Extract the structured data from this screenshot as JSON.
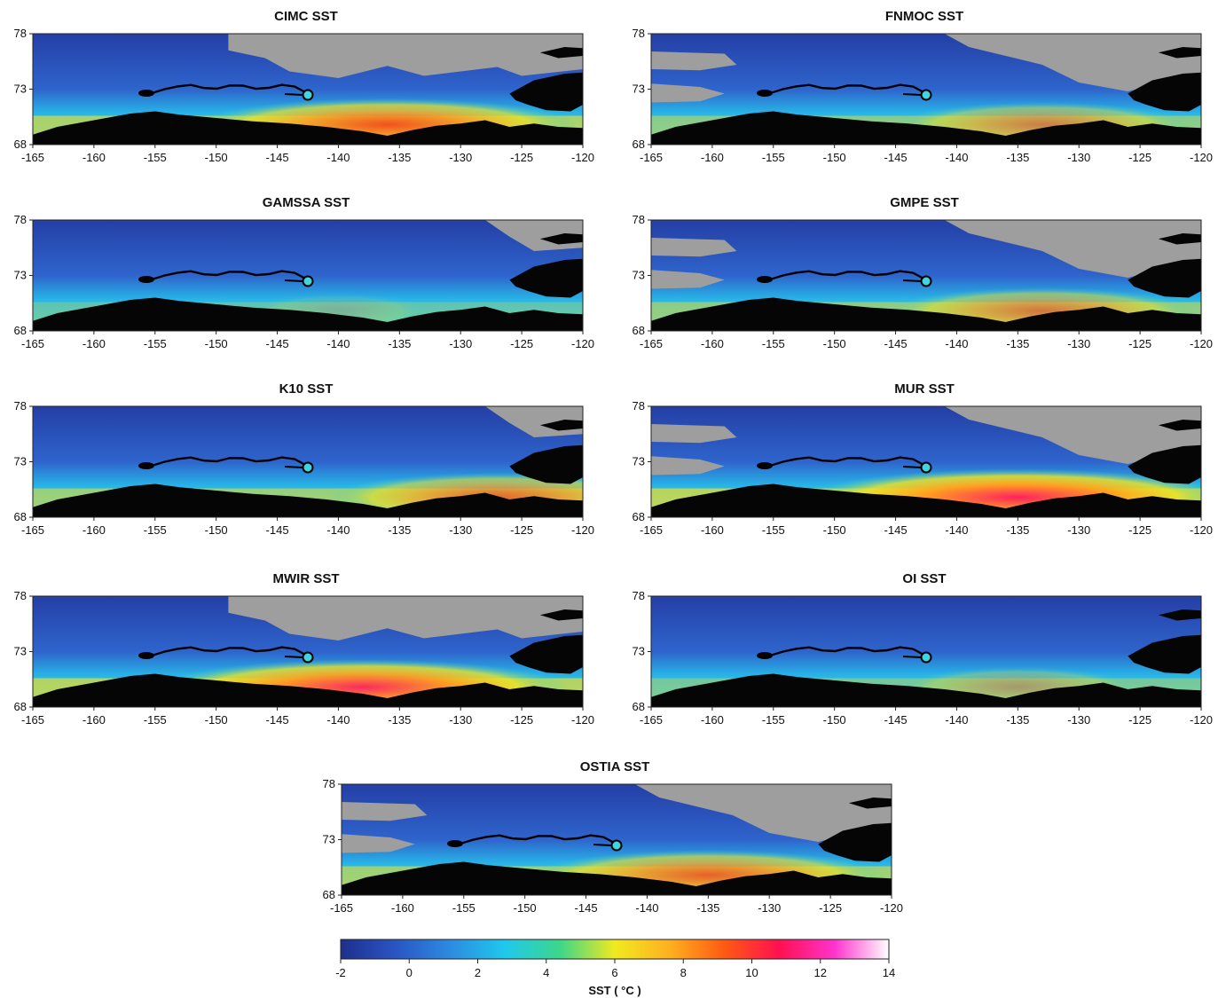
{
  "panels": [
    {
      "title": "CIMC SST",
      "warm": 0.85,
      "warm_center": -136,
      "ice": "mid"
    },
    {
      "title": "FNMOC SST",
      "warm": 0.55,
      "warm_center": -133,
      "ice": "large"
    },
    {
      "title": "GAMSSA SST",
      "warm": 0.15,
      "warm_center": -140,
      "ice": "small"
    },
    {
      "title": "GMPE SST",
      "warm": 0.6,
      "warm_center": -133,
      "ice": "large"
    },
    {
      "title": "K10 SST",
      "warm": 0.7,
      "warm_center": -127,
      "ice": "small"
    },
    {
      "title": "MUR SST",
      "warm": 1.0,
      "warm_center": -135,
      "ice": "large"
    },
    {
      "title": "MWIR SST",
      "warm": 0.95,
      "warm_center": -138,
      "ice": "mid"
    },
    {
      "title": "OI SST",
      "warm": 0.35,
      "warm_center": -135,
      "ice": "none"
    },
    {
      "title": "OSTIA SST",
      "warm": 0.75,
      "warm_center": -135,
      "ice": "large"
    }
  ],
  "axes": {
    "x_ticks": [
      "-165",
      "-160",
      "-155",
      "-150",
      "-145",
      "-140",
      "-135",
      "-130",
      "-125",
      "-120"
    ],
    "y_ticks": [
      "78",
      "73",
      "68"
    ],
    "x_range": [
      -165,
      -120
    ],
    "y_range": [
      68,
      78
    ]
  },
  "track": {
    "start_lon": -156,
    "end_lon": -142.5,
    "lat": 72.8
  },
  "colorbar": {
    "label": "SST ( °C )",
    "ticks": [
      "-2",
      "0",
      "2",
      "4",
      "6",
      "8",
      "10",
      "12",
      "14"
    ],
    "range": [
      -2,
      14
    ],
    "colors": [
      "#1e2f8c",
      "#2a55c4",
      "#2c8be0",
      "#20c8ec",
      "#3dd68a",
      "#f0ea20",
      "#ffb020",
      "#ff5a12",
      "#ff1050",
      "#ff33cc",
      "#ffffff"
    ]
  },
  "colors": {
    "ice": "#9e9e9e",
    "land": "#050505",
    "ocean": "#2a52b8",
    "track": "#000000",
    "marker": "#3fd6e0"
  }
}
